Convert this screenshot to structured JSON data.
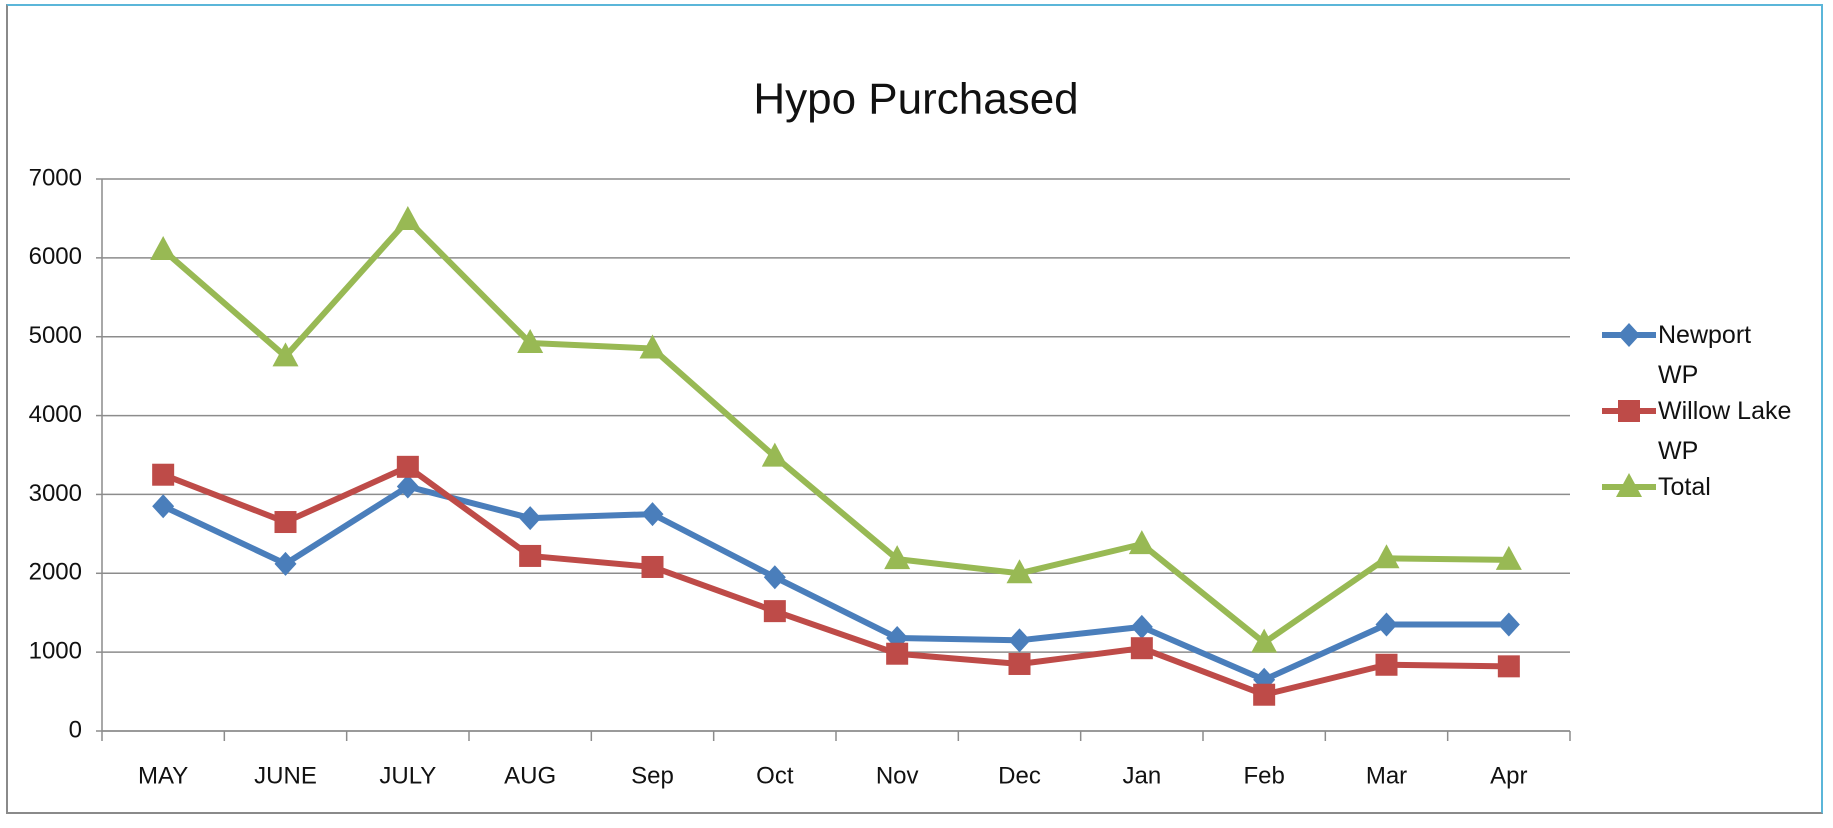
{
  "chart_data": {
    "type": "line",
    "title": "Hypo Purchased",
    "categories": [
      "MAY",
      "JUNE",
      "JULY",
      "AUG",
      "Sep",
      "Oct",
      "Nov",
      "Dec",
      "Jan",
      "Feb",
      "Mar",
      "Apr"
    ],
    "series": [
      {
        "name": "Newport WP",
        "color": "#4a7ebb",
        "marker": "diamond",
        "values": [
          2850,
          2120,
          3100,
          2700,
          2750,
          1950,
          1180,
          1150,
          1320,
          650,
          1350,
          1350
        ]
      },
      {
        "name": "Willow Lake WP",
        "color": "#be4b48",
        "marker": "square",
        "values": [
          3250,
          2650,
          3350,
          2220,
          2080,
          1520,
          980,
          850,
          1050,
          460,
          840,
          820
        ]
      },
      {
        "name": "Total",
        "color": "#98b954",
        "marker": "triangle",
        "values": [
          6100,
          4750,
          6480,
          4920,
          4850,
          3480,
          2180,
          2000,
          2370,
          1120,
          2190,
          2170
        ]
      }
    ],
    "ylim": [
      0,
      7000
    ],
    "yticks": [
      0,
      1000,
      2000,
      3000,
      4000,
      5000,
      6000,
      7000
    ],
    "grid": true,
    "legend": "right"
  }
}
